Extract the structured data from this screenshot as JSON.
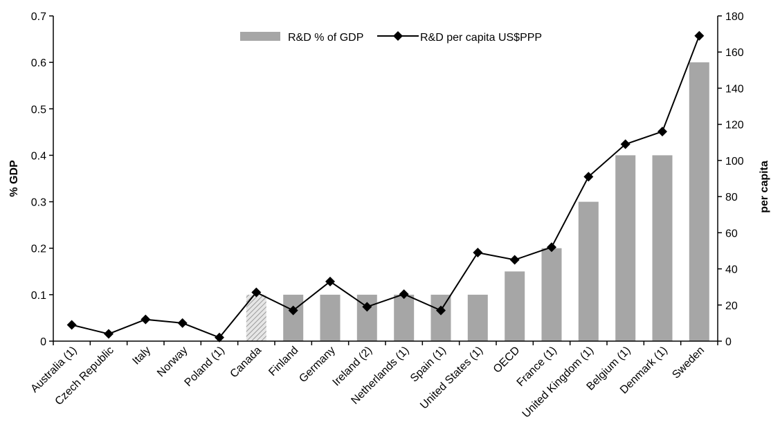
{
  "chart_data": {
    "type": "bar",
    "categories": [
      "Australia (1)",
      "Czech Republic",
      "Italy",
      "Norway",
      "Poland (1)",
      "Canada",
      "Finland",
      "Germany",
      "Ireland (2)",
      "Netherlands (1)",
      "Spain (1)",
      "United States (1)",
      "OECD",
      "France (1)",
      "United Kingdom (1)",
      "Belgium (1)",
      "Denmark (1)",
      "Sweden"
    ],
    "series": [
      {
        "name": "R&D % of GDP",
        "kind": "bar",
        "axis": "left",
        "color": "#a6a6a6",
        "hatched_categories": [
          "Canada"
        ],
        "values": [
          0,
          0,
          0,
          0,
          0,
          0.1,
          0.1,
          0.1,
          0.1,
          0.1,
          0.1,
          0.1,
          0.15,
          0.2,
          0.3,
          0.4,
          0.4,
          0.6
        ]
      },
      {
        "name": "R&D per capita US$PPP",
        "kind": "line",
        "axis": "right",
        "marker": "diamond",
        "color": "#000000",
        "values": [
          9,
          4,
          12,
          10,
          2,
          27,
          17,
          33,
          19,
          26,
          17,
          49,
          45,
          52,
          91,
          109,
          116,
          169
        ]
      }
    ],
    "ylabel": "% GDP",
    "ylabel_right": "per capita",
    "ylim": [
      0,
      0.7
    ],
    "yticks": [
      "0",
      "0.1",
      "0.2",
      "0.3",
      "0.4",
      "0.5",
      "0.6",
      "0.7"
    ],
    "ylim_right": [
      0,
      180
    ],
    "yticks_right": [
      "0",
      "20",
      "40",
      "60",
      "80",
      "100",
      "120",
      "140",
      "160",
      "180"
    ],
    "legend": "top-center",
    "grid": false
  }
}
